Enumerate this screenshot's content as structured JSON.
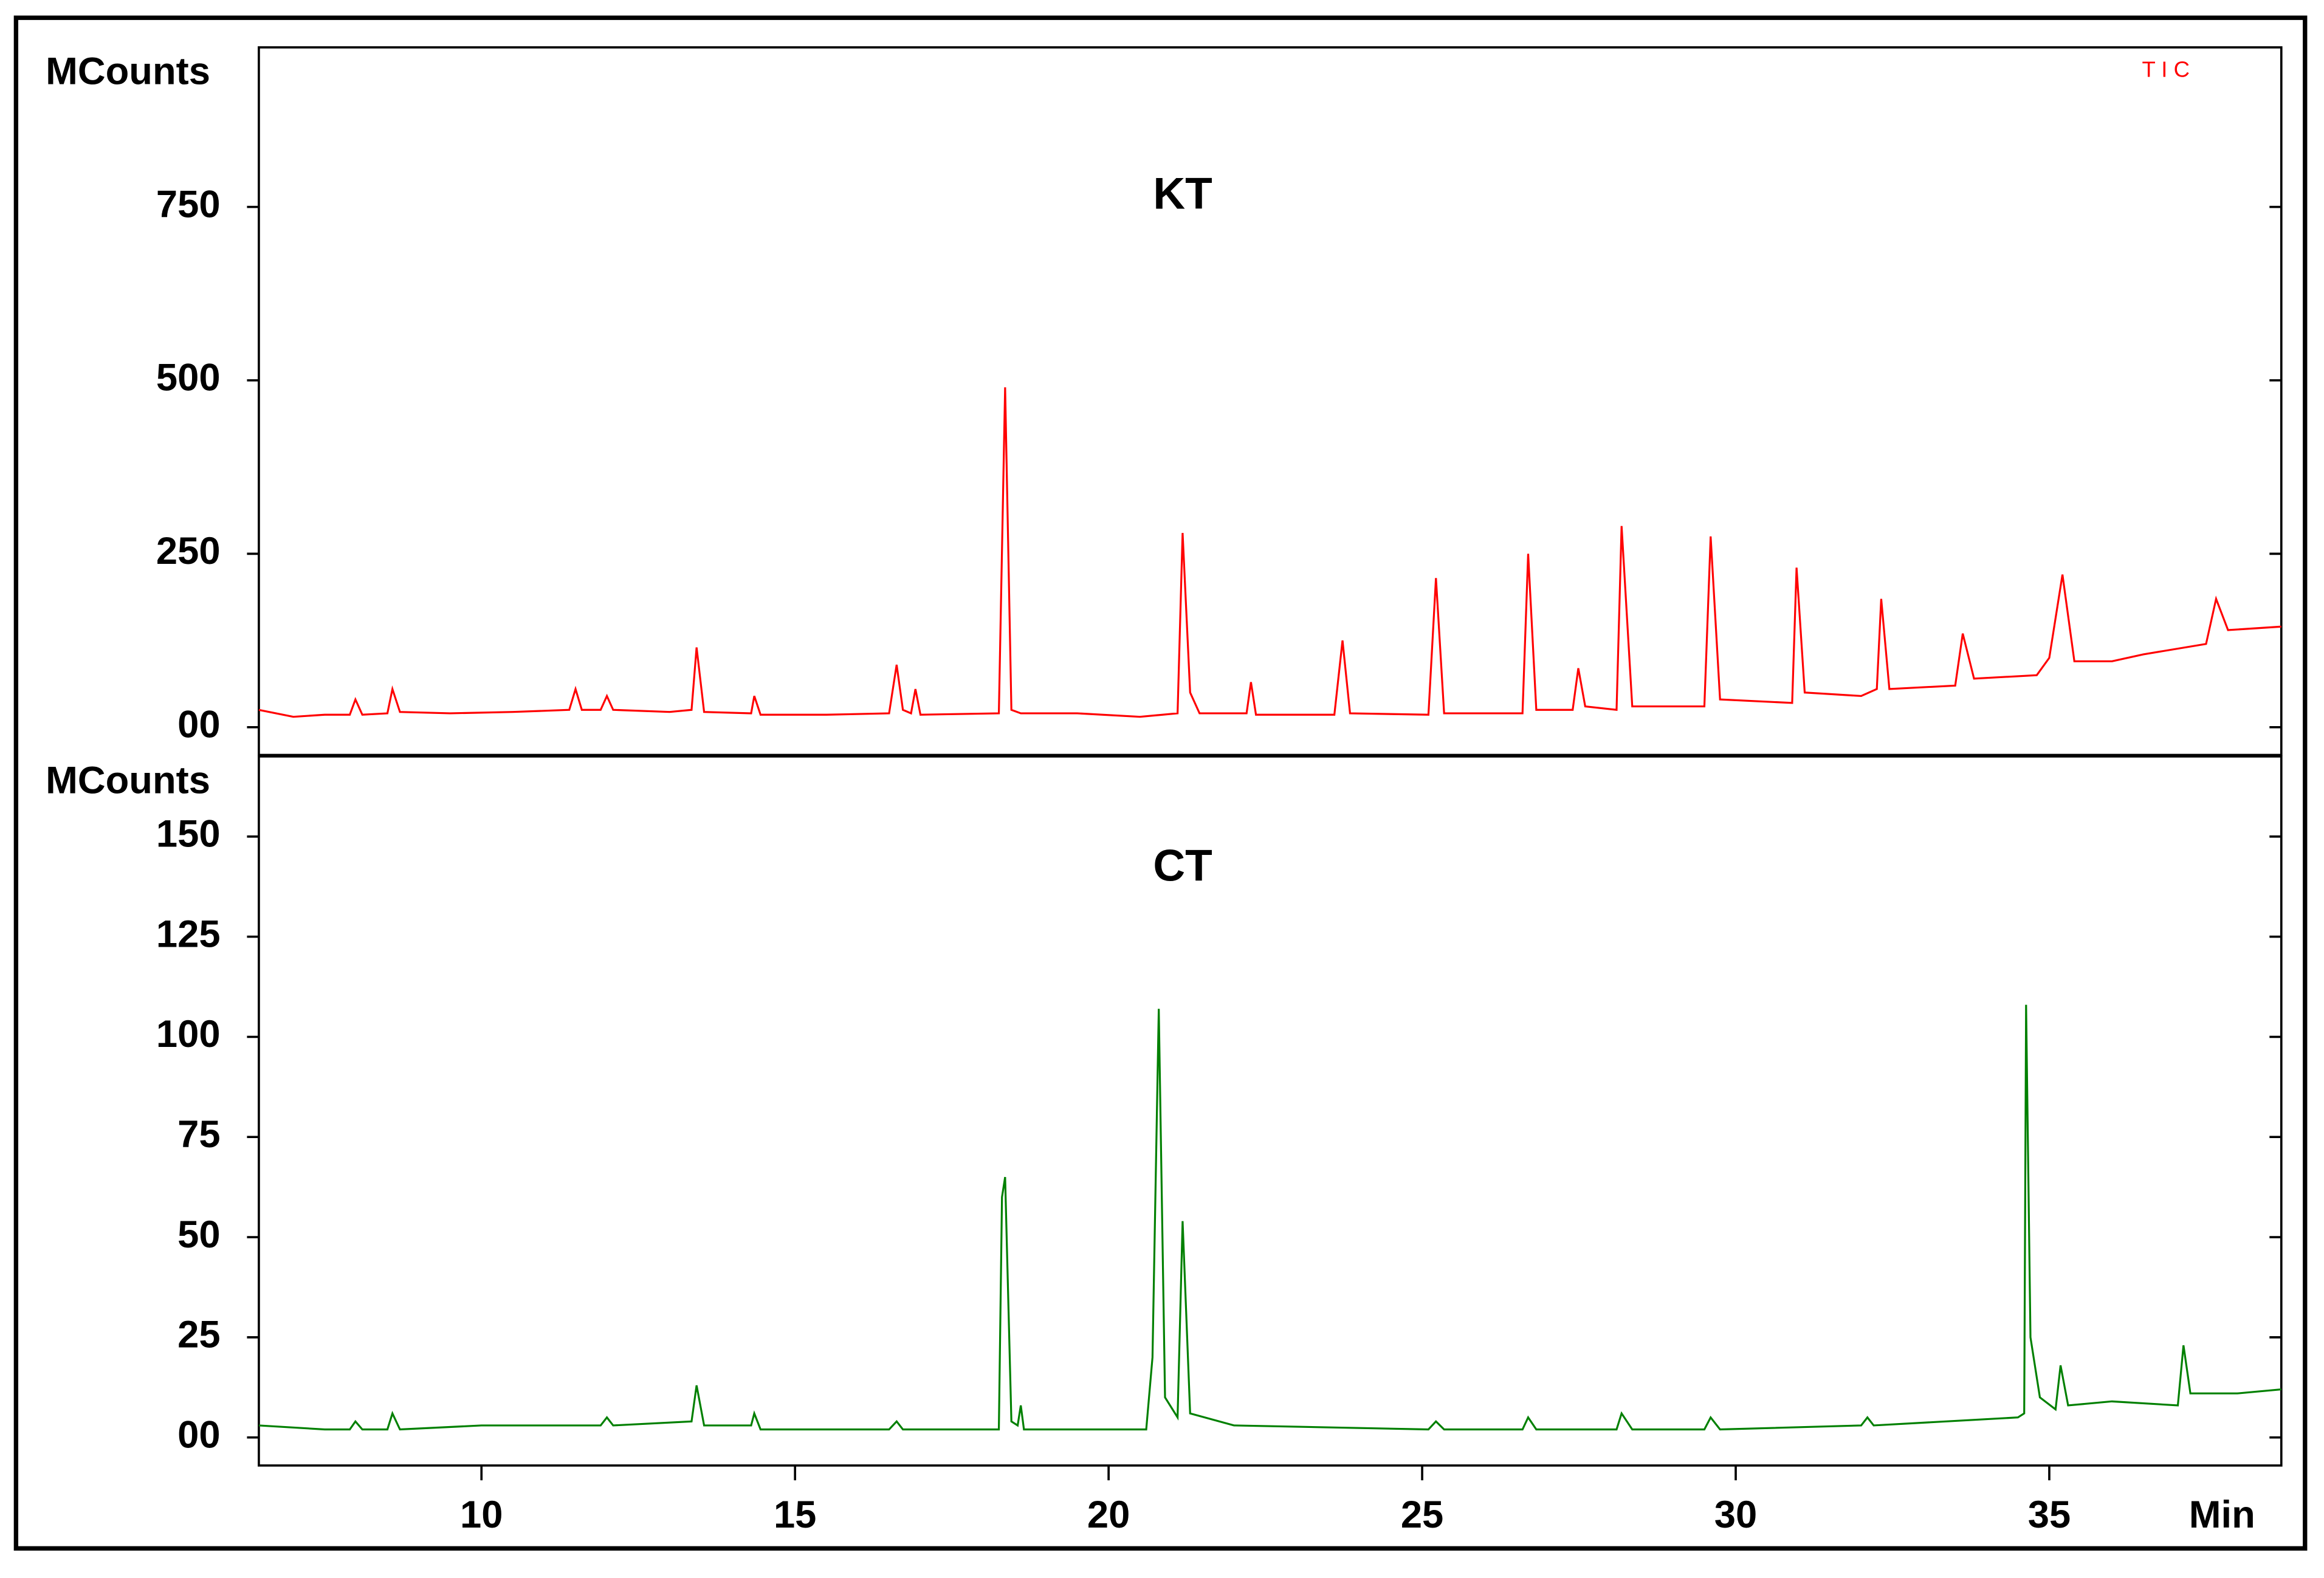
{
  "chart_data": [
    {
      "type": "line",
      "title": "KT",
      "y_label": "MCounts",
      "annotation": "T I C",
      "color": "#ff0000",
      "x": [
        6.45,
        7.0,
        7.5,
        7.9,
        7.99,
        8.1,
        8.5,
        8.58,
        8.7,
        9.5,
        10.5,
        11.4,
        11.5,
        11.6,
        11.9,
        12.0,
        12.1,
        13.0,
        13.35,
        13.43,
        13.55,
        14.3,
        14.35,
        14.45,
        15.5,
        16.5,
        16.62,
        16.72,
        16.85,
        16.92,
        17.0,
        18.25,
        18.35,
        18.45,
        18.6,
        19.5,
        20.5,
        21.1,
        21.18,
        21.3,
        21.45,
        22.2,
        22.27,
        22.35,
        23.6,
        23.73,
        23.85,
        25.1,
        25.22,
        25.35,
        26.6,
        26.69,
        26.82,
        27.4,
        27.49,
        27.6,
        28.1,
        28.18,
        28.35,
        29.5,
        29.6,
        29.75,
        30.9,
        30.97,
        31.1,
        32.0,
        32.25,
        32.32,
        32.45,
        33.5,
        33.62,
        33.8,
        34.8,
        35.0,
        35.21,
        35.4,
        36.0,
        36.5,
        37.5,
        37.66,
        37.85,
        38.7
      ],
      "values": [
        25,
        15,
        18,
        18,
        40,
        18,
        20,
        55,
        22,
        20,
        22,
        25,
        55,
        25,
        25,
        45,
        25,
        22,
        25,
        115,
        22,
        20,
        45,
        18,
        18,
        20,
        90,
        25,
        20,
        55,
        18,
        20,
        490,
        25,
        20,
        20,
        15,
        20,
        280,
        50,
        20,
        20,
        65,
        18,
        18,
        125,
        20,
        18,
        215,
        20,
        20,
        250,
        25,
        25,
        85,
        30,
        25,
        290,
        30,
        30,
        275,
        40,
        35,
        230,
        50,
        45,
        55,
        185,
        55,
        60,
        135,
        70,
        75,
        100,
        220,
        95,
        95,
        105,
        120,
        185,
        140,
        145
      ],
      "xlim": [
        6.45,
        38.7
      ],
      "ylim": [
        -40,
        980
      ],
      "yticks": [
        {
          "value": 0,
          "label": "00"
        },
        250,
        500,
        750
      ]
    },
    {
      "type": "line",
      "title": "CT",
      "y_label": "MCounts",
      "x_label": "Min",
      "color": "#008000",
      "x": [
        6.45,
        7.5,
        7.9,
        7.99,
        8.1,
        8.5,
        8.58,
        8.7,
        10.0,
        11.5,
        11.9,
        12.0,
        12.1,
        13.35,
        13.43,
        13.55,
        14.3,
        14.35,
        14.45,
        16.5,
        16.62,
        16.72,
        18.25,
        18.3,
        18.35,
        18.45,
        18.55,
        18.6,
        18.65,
        20.6,
        20.7,
        20.8,
        20.9,
        21.1,
        21.18,
        21.3,
        22.0,
        25.1,
        25.22,
        25.35,
        26.6,
        26.69,
        26.82,
        28.1,
        28.18,
        28.35,
        29.5,
        29.6,
        29.75,
        32.0,
        32.1,
        32.2,
        34.5,
        34.6,
        34.63,
        34.7,
        34.85,
        35.1,
        35.18,
        35.3,
        36.0,
        37.05,
        37.14,
        37.25,
        38.0,
        38.7
      ],
      "values": [
        3,
        2,
        2,
        4,
        2,
        2,
        6,
        2,
        3,
        3,
        3,
        5,
        3,
        4,
        13,
        3,
        3,
        6,
        2,
        2,
        4,
        2,
        2,
        60,
        65,
        4,
        3,
        8,
        2,
        2,
        20,
        107,
        10,
        5,
        54,
        6,
        3,
        2,
        4,
        2,
        2,
        5,
        2,
        2,
        6,
        2,
        2,
        5,
        2,
        3,
        5,
        3,
        5,
        6,
        108,
        25,
        10,
        7,
        18,
        8,
        9,
        8,
        23,
        11,
        11,
        12
      ],
      "xlim": [
        6.45,
        38.7
      ],
      "ylim": [
        -7,
        170
      ],
      "yticks": [
        {
          "value": 0,
          "label": "00"
        },
        25,
        50,
        75,
        100,
        125,
        150
      ],
      "xticks": [
        10,
        15,
        20,
        25,
        30,
        35
      ]
    }
  ]
}
